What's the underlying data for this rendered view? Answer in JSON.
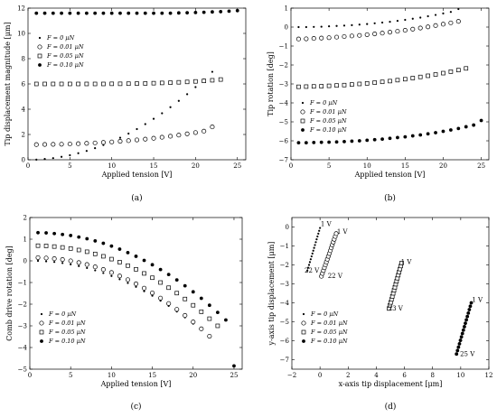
{
  "legend_entries": [
    "F = 0    μN",
    "F = 0.01  μN",
    "F = 0.05  μN",
    "F = 0.10  μN"
  ],
  "chart_data": [
    {
      "type": "scatter",
      "panel_label": "(a)",
      "xlabel": "Applied tension [V]",
      "ylabel": "Tip displacement magnitude [μm]",
      "xlim": [
        0,
        26
      ],
      "ylim": [
        0,
        12
      ],
      "xticks": [
        0,
        5,
        10,
        15,
        20,
        25
      ],
      "yticks": [
        0,
        2,
        4,
        6,
        8,
        10,
        12
      ],
      "legend_position": "middle-left",
      "series": [
        {
          "name": "F = 0 μN",
          "marker": "dot",
          "x": [
            1,
            2,
            3,
            4,
            5,
            6,
            7,
            8,
            9,
            10,
            11,
            12,
            13,
            14,
            15,
            16,
            17,
            18,
            19,
            20,
            21,
            22
          ],
          "y": [
            0.01,
            0.06,
            0.13,
            0.23,
            0.36,
            0.52,
            0.7,
            0.92,
            1.17,
            1.44,
            1.74,
            2.07,
            2.43,
            2.82,
            3.24,
            3.68,
            4.16,
            4.66,
            5.19,
            5.75,
            6.34,
            6.96
          ]
        },
        {
          "name": "F = 0.01 μN",
          "marker": "circle",
          "x": [
            1,
            2,
            3,
            4,
            5,
            6,
            7,
            8,
            9,
            10,
            11,
            12,
            13,
            14,
            15,
            16,
            17,
            18,
            19,
            20,
            21,
            22
          ],
          "y": [
            1.2,
            1.21,
            1.22,
            1.23,
            1.25,
            1.27,
            1.3,
            1.33,
            1.37,
            1.41,
            1.46,
            1.51,
            1.57,
            1.63,
            1.7,
            1.78,
            1.86,
            1.95,
            2.05,
            2.15,
            2.26,
            2.6
          ]
        },
        {
          "name": "F = 0.05 μN",
          "marker": "square",
          "x": [
            1,
            2,
            3,
            4,
            5,
            6,
            7,
            8,
            9,
            10,
            11,
            12,
            13,
            14,
            15,
            16,
            17,
            18,
            19,
            20,
            21,
            22,
            23
          ],
          "y": [
            6.0,
            6.0,
            6.0,
            6.0,
            6.0,
            6.0,
            6.0,
            6.0,
            6.0,
            6.01,
            6.01,
            6.02,
            6.03,
            6.04,
            6.06,
            6.08,
            6.1,
            6.13,
            6.16,
            6.2,
            6.24,
            6.29,
            6.35
          ]
        },
        {
          "name": "F = 0.10 μN",
          "marker": "filled-circle",
          "x": [
            1,
            2,
            3,
            4,
            5,
            6,
            7,
            8,
            9,
            10,
            11,
            12,
            13,
            14,
            15,
            16,
            17,
            18,
            19,
            20,
            21,
            22,
            23,
            24,
            25
          ],
          "y": [
            11.6,
            11.6,
            11.6,
            11.6,
            11.6,
            11.6,
            11.6,
            11.6,
            11.6,
            11.6,
            11.6,
            11.6,
            11.6,
            11.6,
            11.6,
            11.6,
            11.6,
            11.62,
            11.63,
            11.65,
            11.67,
            11.7,
            11.72,
            11.76,
            11.8
          ]
        }
      ]
    },
    {
      "type": "scatter",
      "panel_label": "(b)",
      "xlabel": "Applied tension [V]",
      "ylabel": "Tip rotation [deg]",
      "xlim": [
        0,
        26
      ],
      "ylim": [
        -7,
        1
      ],
      "xticks": [
        0,
        5,
        10,
        15,
        20,
        25
      ],
      "yticks": [
        -7,
        -6,
        -5,
        -4,
        -3,
        -2,
        -1,
        0,
        1
      ],
      "legend_position": "bottom-left",
      "series": [
        {
          "name": "F = 0 μN",
          "marker": "dot",
          "x": [
            1,
            2,
            3,
            4,
            5,
            6,
            7,
            8,
            9,
            10,
            11,
            12,
            13,
            14,
            15,
            16,
            17,
            18,
            19,
            20,
            21,
            22
          ],
          "y": [
            0.0,
            0.0,
            0.01,
            0.02,
            0.04,
            0.06,
            0.08,
            0.1,
            0.13,
            0.16,
            0.2,
            0.24,
            0.28,
            0.33,
            0.38,
            0.44,
            0.5,
            0.57,
            0.64,
            0.72,
            0.8,
            0.95
          ]
        },
        {
          "name": "F = 0.01 μN",
          "marker": "circle",
          "x": [
            1,
            2,
            3,
            4,
            5,
            6,
            7,
            8,
            9,
            10,
            11,
            12,
            13,
            14,
            15,
            16,
            17,
            18,
            19,
            20,
            21,
            22
          ],
          "y": [
            -0.63,
            -0.62,
            -0.6,
            -0.58,
            -0.56,
            -0.53,
            -0.5,
            -0.47,
            -0.44,
            -0.4,
            -0.36,
            -0.32,
            -0.27,
            -0.22,
            -0.17,
            -0.11,
            -0.05,
            0.01,
            0.08,
            0.15,
            0.22,
            0.3
          ]
        },
        {
          "name": "F = 0.05 μN",
          "marker": "square",
          "x": [
            1,
            2,
            3,
            4,
            5,
            6,
            7,
            8,
            9,
            10,
            11,
            12,
            13,
            14,
            15,
            16,
            17,
            18,
            19,
            20,
            21,
            22,
            23
          ],
          "y": [
            -3.15,
            -3.14,
            -3.13,
            -3.12,
            -3.1,
            -3.08,
            -3.06,
            -3.03,
            -3.0,
            -2.97,
            -2.93,
            -2.89,
            -2.85,
            -2.8,
            -2.75,
            -2.69,
            -2.63,
            -2.57,
            -2.5,
            -2.43,
            -2.35,
            -2.27,
            -2.18
          ]
        },
        {
          "name": "F = 0.10 μN",
          "marker": "filled-circle",
          "x": [
            1,
            2,
            3,
            4,
            5,
            6,
            7,
            8,
            9,
            10,
            11,
            12,
            13,
            14,
            15,
            16,
            17,
            18,
            19,
            20,
            21,
            22,
            23,
            24,
            25
          ],
          "y": [
            -6.1,
            -6.1,
            -6.09,
            -6.08,
            -6.07,
            -6.06,
            -6.04,
            -6.02,
            -6.0,
            -5.97,
            -5.94,
            -5.91,
            -5.87,
            -5.83,
            -5.79,
            -5.74,
            -5.69,
            -5.63,
            -5.57,
            -5.5,
            -5.43,
            -5.35,
            -5.26,
            -5.17,
            -4.93
          ]
        }
      ]
    },
    {
      "type": "scatter",
      "panel_label": "(c)",
      "xlabel": "Applied tension [V]",
      "ylabel": "Comb drive rotation [deg]",
      "xlim": [
        0,
        26
      ],
      "ylim": [
        -5,
        2
      ],
      "xticks": [
        0,
        5,
        10,
        15,
        20,
        25
      ],
      "yticks": [
        -5,
        -4,
        -3,
        -2,
        -1,
        0,
        1,
        2
      ],
      "legend_position": "bottom-left",
      "series": [
        {
          "name": "F = 0 μN",
          "marker": "dot",
          "x": [
            1,
            2,
            3,
            4,
            5,
            6,
            7,
            8,
            9,
            10,
            11,
            12,
            13,
            14,
            15,
            16,
            17,
            18,
            19,
            20,
            21,
            22
          ],
          "y": [
            0.0,
            -0.02,
            -0.05,
            -0.1,
            -0.16,
            -0.24,
            -0.33,
            -0.44,
            -0.56,
            -0.7,
            -0.85,
            -1.02,
            -1.2,
            -1.4,
            -1.61,
            -1.84,
            -2.08,
            -2.34,
            -2.61,
            -2.9,
            -3.2,
            -3.52
          ]
        },
        {
          "name": "F = 0.01 μN",
          "marker": "circle",
          "x": [
            1,
            2,
            3,
            4,
            5,
            6,
            7,
            8,
            9,
            10,
            11,
            12,
            13,
            14,
            15,
            16,
            17,
            18,
            19,
            20,
            21,
            22
          ],
          "y": [
            0.15,
            0.13,
            0.1,
            0.06,
            0.0,
            -0.08,
            -0.17,
            -0.28,
            -0.4,
            -0.54,
            -0.7,
            -0.87,
            -1.06,
            -1.26,
            -1.48,
            -1.72,
            -1.97,
            -2.24,
            -2.52,
            -2.82,
            -3.14,
            -3.48
          ]
        },
        {
          "name": "F = 0.05 μN",
          "marker": "square",
          "x": [
            1,
            2,
            3,
            4,
            5,
            6,
            7,
            8,
            9,
            10,
            11,
            12,
            13,
            14,
            15,
            16,
            17,
            18,
            19,
            20,
            21,
            22,
            23
          ],
          "y": [
            0.7,
            0.69,
            0.66,
            0.62,
            0.57,
            0.5,
            0.42,
            0.32,
            0.21,
            0.08,
            -0.06,
            -0.22,
            -0.39,
            -0.58,
            -0.78,
            -1.0,
            -1.24,
            -1.49,
            -1.76,
            -2.05,
            -2.35,
            -2.67,
            -3.0
          ]
        },
        {
          "name": "F = 0.10 μN",
          "marker": "filled-circle",
          "x": [
            1,
            2,
            3,
            4,
            5,
            6,
            7,
            8,
            9,
            10,
            11,
            12,
            13,
            14,
            15,
            16,
            17,
            18,
            19,
            20,
            21,
            22,
            23,
            24,
            25
          ],
          "y": [
            1.3,
            1.29,
            1.26,
            1.22,
            1.17,
            1.1,
            1.02,
            0.92,
            0.81,
            0.68,
            0.54,
            0.38,
            0.21,
            0.02,
            -0.18,
            -0.4,
            -0.63,
            -0.88,
            -1.15,
            -1.43,
            -1.73,
            -2.05,
            -2.38,
            -2.73,
            -4.85
          ]
        }
      ]
    },
    {
      "type": "scatter",
      "panel_label": "(d)",
      "xlabel": "x-axis tip displacement [μm]",
      "ylabel": "y-axis tip displacement [μm]",
      "xlim": [
        -2,
        12
      ],
      "ylim": [
        -7.5,
        0.5
      ],
      "xticks": [
        -2,
        0,
        2,
        4,
        6,
        8,
        10,
        12
      ],
      "yticks": [
        -7,
        -6,
        -5,
        -4,
        -3,
        -2,
        -1,
        0
      ],
      "legend_position": "bottom-left",
      "annotations": [
        {
          "text": "1 V",
          "x": 0.05,
          "y": 0.05
        },
        {
          "text": "1 V",
          "x": 1.2,
          "y": -0.35
        },
        {
          "text": "1 V",
          "x": 5.75,
          "y": -1.95
        },
        {
          "text": "1 V",
          "x": 10.8,
          "y": -3.95
        },
        {
          "text": "22 V",
          "x": -1.1,
          "y": -2.4
        },
        {
          "text": "22 V",
          "x": 0.55,
          "y": -2.7
        },
        {
          "text": "23 V",
          "x": 4.85,
          "y": -4.4
        },
        {
          "text": "25 V",
          "x": 9.95,
          "y": -6.8
        }
      ],
      "series": [
        {
          "name": "F = 0 μN",
          "marker": "dot",
          "x": [
            -0.9,
            -0.84,
            -0.78,
            -0.72,
            -0.66,
            -0.6,
            -0.54,
            -0.48,
            -0.42,
            -0.36,
            -0.3,
            -0.24,
            -0.18,
            -0.12,
            -0.06,
            0.0
          ],
          "y": [
            -2.3,
            -2.15,
            -2.0,
            -1.85,
            -1.7,
            -1.55,
            -1.4,
            -1.25,
            -1.1,
            -0.95,
            -0.8,
            -0.65,
            -0.5,
            -0.35,
            -0.2,
            -0.05
          ]
        },
        {
          "name": "F = 0.01 μN",
          "marker": "circle",
          "x": [
            0.1,
            0.17,
            0.24,
            0.31,
            0.38,
            0.45,
            0.52,
            0.59,
            0.66,
            0.73,
            0.8,
            0.87,
            0.94,
            1.01,
            1.08,
            1.15
          ],
          "y": [
            -2.6,
            -2.45,
            -2.3,
            -2.15,
            -2.0,
            -1.85,
            -1.7,
            -1.55,
            -1.4,
            -1.25,
            -1.1,
            -0.95,
            -0.8,
            -0.65,
            -0.5,
            -0.35
          ]
        },
        {
          "name": "F = 0.05 μN",
          "marker": "square",
          "x": [
            4.9,
            4.96,
            5.02,
            5.08,
            5.14,
            5.2,
            5.26,
            5.32,
            5.38,
            5.44,
            5.5,
            5.56,
            5.62,
            5.68,
            5.74,
            5.8
          ],
          "y": [
            -4.3,
            -4.14,
            -3.98,
            -3.82,
            -3.66,
            -3.5,
            -3.34,
            -3.18,
            -3.02,
            -2.86,
            -2.7,
            -2.54,
            -2.38,
            -2.22,
            -2.06,
            -1.9
          ]
        },
        {
          "name": "F = 0.10 μN",
          "marker": "filled-circle",
          "x": [
            9.7,
            9.77,
            9.84,
            9.91,
            9.98,
            10.05,
            10.12,
            10.19,
            10.26,
            10.33,
            10.4,
            10.47,
            10.54,
            10.61,
            10.68,
            10.75
          ],
          "y": [
            -6.7,
            -6.52,
            -6.34,
            -6.16,
            -5.98,
            -5.8,
            -5.62,
            -5.44,
            -5.26,
            -5.08,
            -4.9,
            -4.72,
            -4.54,
            -4.36,
            -4.18,
            -4.0
          ]
        }
      ]
    }
  ]
}
